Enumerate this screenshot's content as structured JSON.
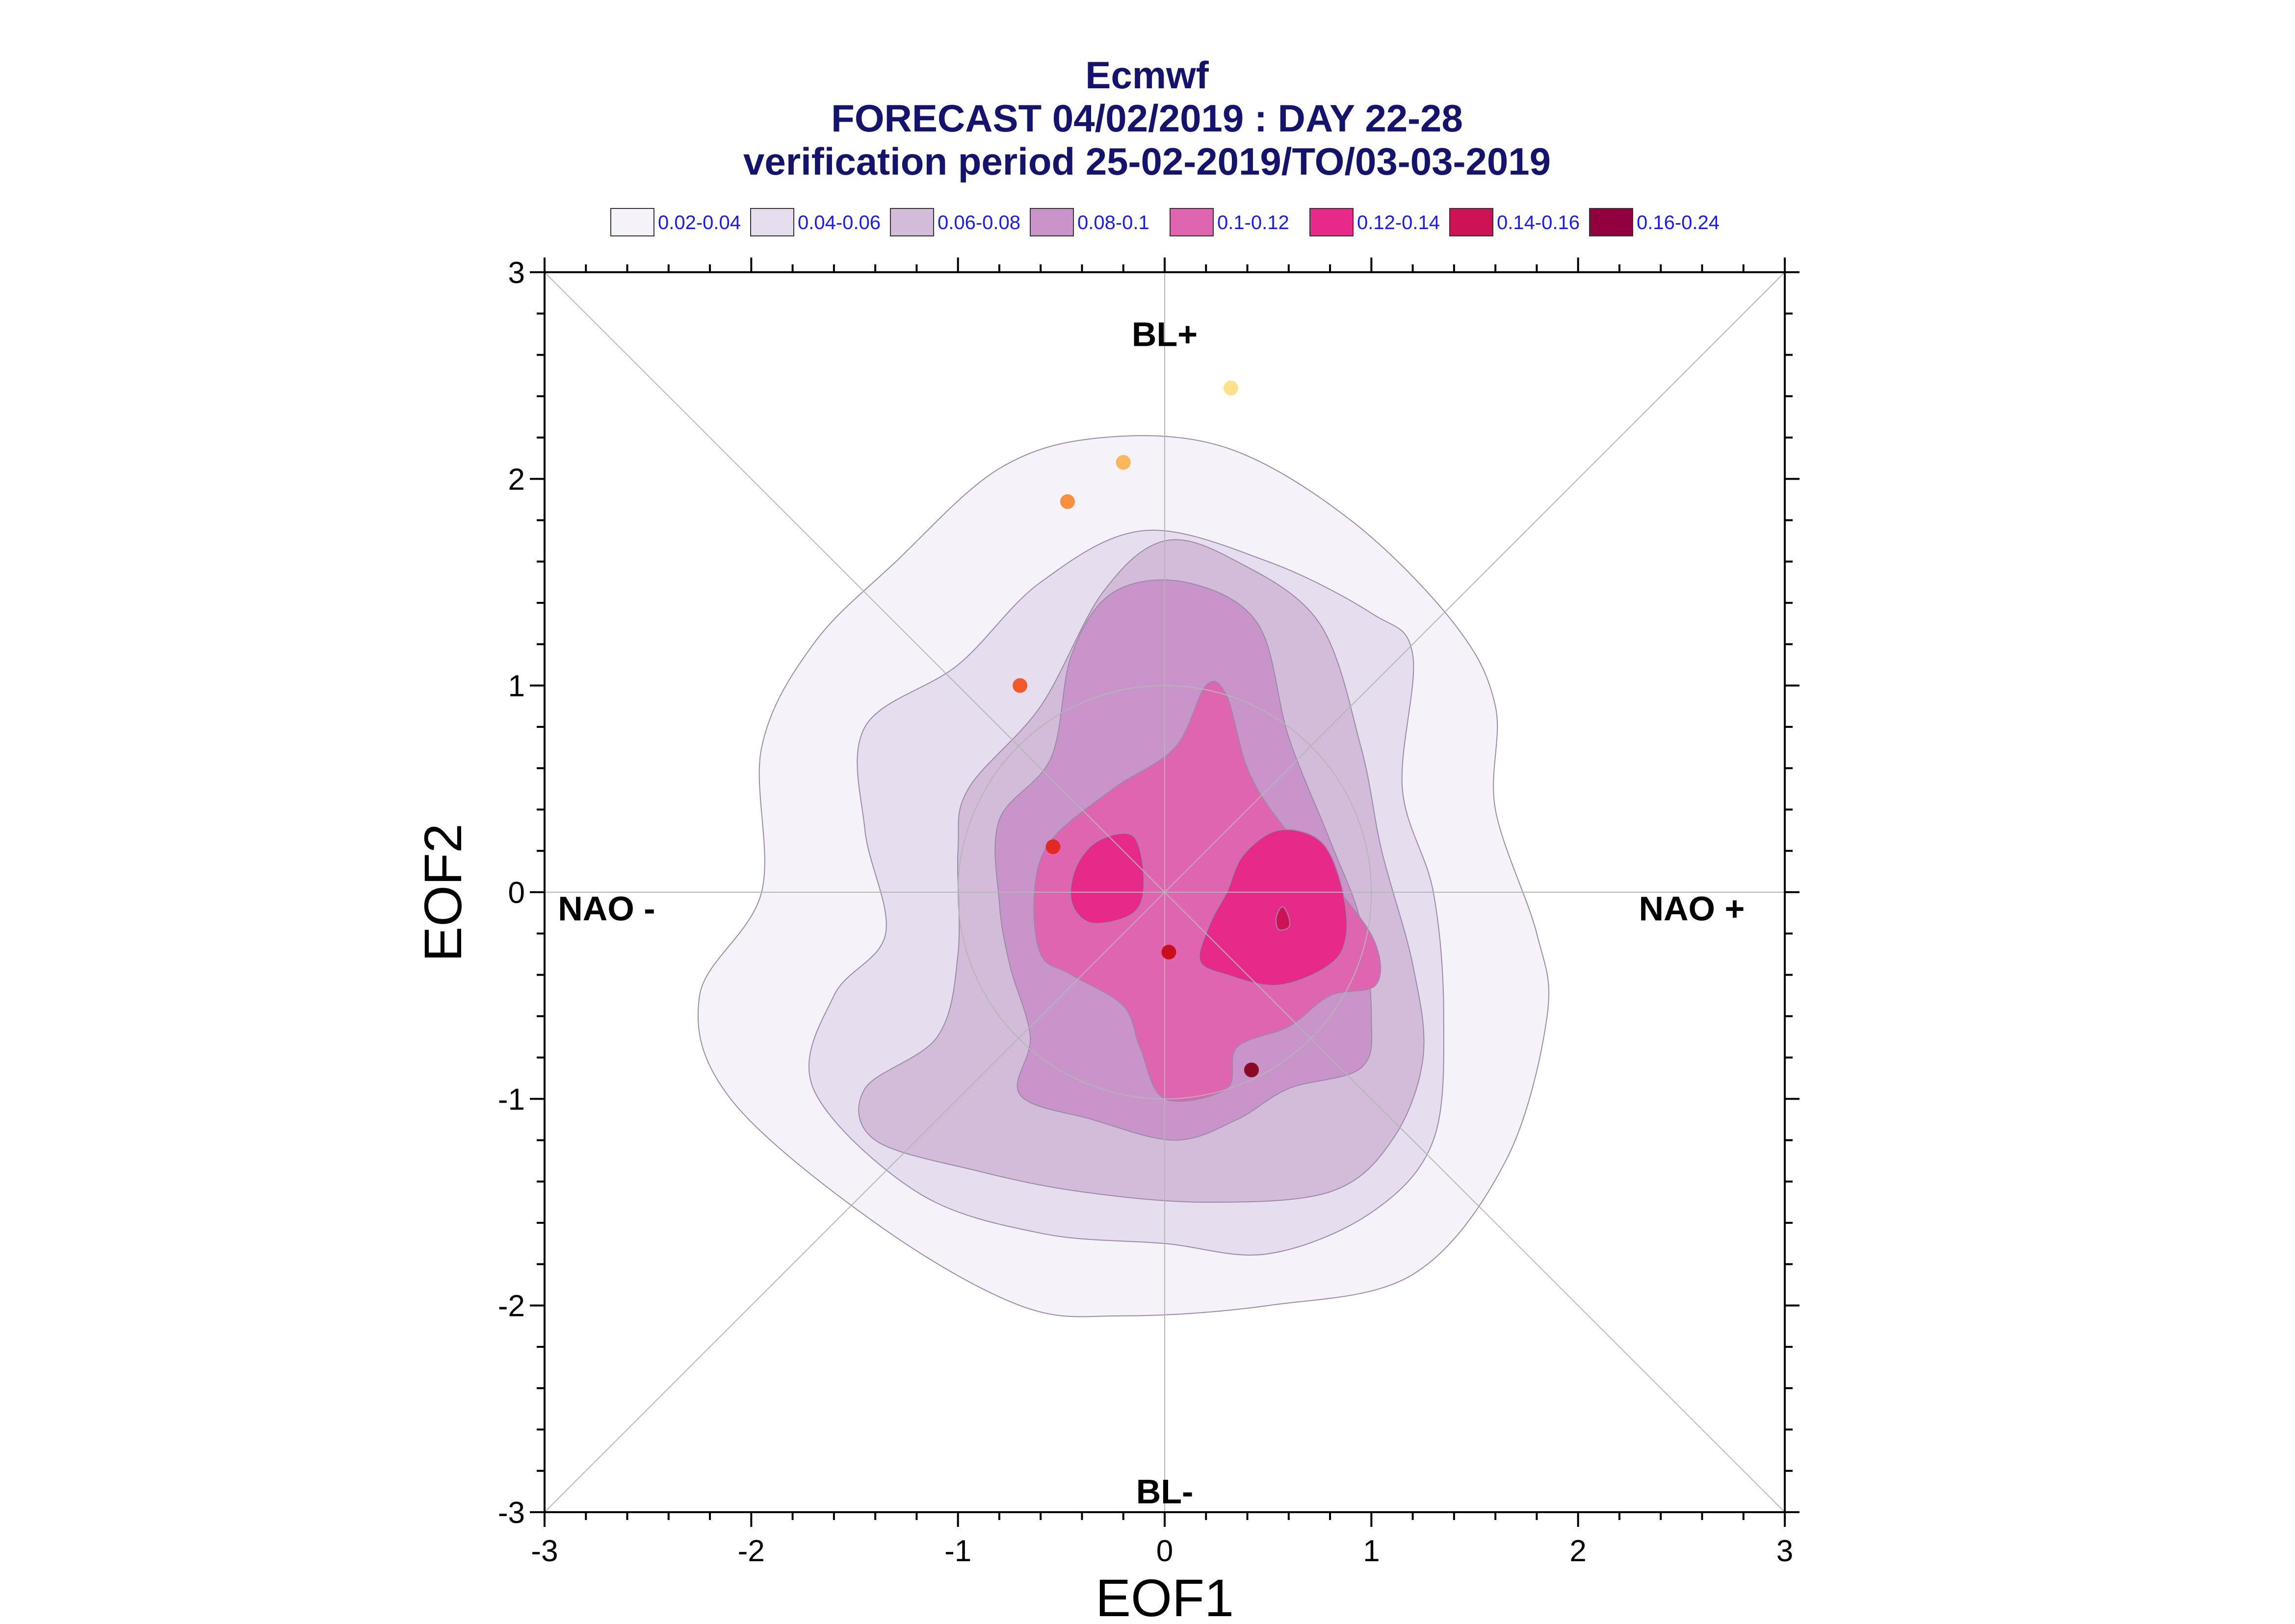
{
  "chart_data": {
    "type": "contour",
    "title": "Ecmwf",
    "subtitle": "FORECAST 04/02/2019 : DAY 22-28",
    "subtitle2": "verification period 25-02-2019/TO/03-03-2019",
    "xlabel": "EOF1",
    "ylabel": "EOF2",
    "xlim": [
      -3,
      3
    ],
    "ylim": [
      -3,
      3
    ],
    "xticks": [
      "-3",
      "-2",
      "-1",
      "0",
      "1",
      "2",
      "3"
    ],
    "yticks": [
      "-3",
      "-2",
      "-1",
      "0",
      "1",
      "2",
      "3"
    ],
    "grid": false,
    "legend_position": "top",
    "legend": [
      {
        "label": "0.02-0.04",
        "color": "#f5f2f9"
      },
      {
        "label": "0.04-0.06",
        "color": "#e6ddee"
      },
      {
        "label": "0.06-0.08",
        "color": "#d3bcda"
      },
      {
        "label": "0.08-0.1",
        "color": "#c994c9"
      },
      {
        "label": "0.1-0.12",
        "color": "#df65b0"
      },
      {
        "label": "0.12-0.14",
        "color": "#e7298a"
      },
      {
        "label": "0.14-0.16",
        "color": "#ce1256"
      },
      {
        "label": "0.16-0.24",
        "color": "#91003f"
      }
    ],
    "regime_labels": [
      {
        "text": "BL+",
        "x": 0,
        "y": 2.7
      },
      {
        "text": "BL-",
        "x": 0,
        "y": -2.9
      },
      {
        "text": "NAO -",
        "x": -2.7,
        "y": -0.08
      },
      {
        "text": "NAO +",
        "x": 2.55,
        "y": -0.08
      }
    ],
    "contours": [
      {
        "level": 0,
        "points": [
          [
            -1.3,
            1.6
          ],
          [
            -0.8,
            2.05
          ],
          [
            -0.3,
            2.2
          ],
          [
            0.3,
            2.15
          ],
          [
            0.9,
            1.8
          ],
          [
            1.4,
            1.3
          ],
          [
            1.6,
            0.9
          ],
          [
            1.6,
            0.4
          ],
          [
            1.8,
            -0.2
          ],
          [
            1.85,
            -0.6
          ],
          [
            1.65,
            -1.3
          ],
          [
            1.2,
            -1.85
          ],
          [
            0.5,
            -2.0
          ],
          [
            -0.2,
            -2.05
          ],
          [
            -0.7,
            -2.0
          ],
          [
            -1.4,
            -1.6
          ],
          [
            -2.1,
            -1.0
          ],
          [
            -2.25,
            -0.5
          ],
          [
            -1.95,
            0.0
          ],
          [
            -1.95,
            0.7
          ],
          [
            -1.7,
            1.2
          ]
        ]
      },
      {
        "level": 1,
        "points": [
          [
            -1.45,
            0.8
          ],
          [
            -1.0,
            1.1
          ],
          [
            -0.6,
            1.5
          ],
          [
            -0.1,
            1.75
          ],
          [
            0.5,
            1.6
          ],
          [
            1.0,
            1.35
          ],
          [
            1.2,
            1.15
          ],
          [
            1.15,
            0.5
          ],
          [
            1.3,
            0.0
          ],
          [
            1.35,
            -0.6
          ],
          [
            1.3,
            -1.2
          ],
          [
            1.0,
            -1.55
          ],
          [
            0.5,
            -1.75
          ],
          [
            0.0,
            -1.7
          ],
          [
            -0.6,
            -1.65
          ],
          [
            -1.2,
            -1.45
          ],
          [
            -1.7,
            -0.95
          ],
          [
            -1.6,
            -0.5
          ],
          [
            -1.35,
            -0.2
          ],
          [
            -1.45,
            0.3
          ]
        ]
      },
      {
        "level": 2,
        "points": [
          [
            -0.95,
            0.5
          ],
          [
            -0.6,
            0.9
          ],
          [
            -0.3,
            1.45
          ],
          [
            0.0,
            1.7
          ],
          [
            0.35,
            1.6
          ],
          [
            0.75,
            1.3
          ],
          [
            0.95,
            0.7
          ],
          [
            1.05,
            0.2
          ],
          [
            1.2,
            -0.35
          ],
          [
            1.25,
            -0.8
          ],
          [
            1.1,
            -1.2
          ],
          [
            0.8,
            -1.45
          ],
          [
            0.2,
            -1.5
          ],
          [
            -0.4,
            -1.45
          ],
          [
            -0.9,
            -1.35
          ],
          [
            -1.4,
            -1.2
          ],
          [
            -1.45,
            -0.95
          ],
          [
            -1.1,
            -0.7
          ],
          [
            -1.0,
            -0.3
          ],
          [
            -1.0,
            0.2
          ]
        ]
      },
      {
        "level": 3,
        "points": [
          [
            -0.8,
            0.35
          ],
          [
            -0.55,
            0.65
          ],
          [
            -0.45,
            1.15
          ],
          [
            -0.25,
            1.45
          ],
          [
            0.1,
            1.5
          ],
          [
            0.45,
            1.3
          ],
          [
            0.6,
            0.75
          ],
          [
            0.8,
            0.25
          ],
          [
            0.95,
            -0.15
          ],
          [
            1.0,
            -0.6
          ],
          [
            0.95,
            -0.85
          ],
          [
            0.6,
            -0.95
          ],
          [
            0.35,
            -1.1
          ],
          [
            0.05,
            -1.2
          ],
          [
            -0.35,
            -1.1
          ],
          [
            -0.7,
            -0.98
          ],
          [
            -0.65,
            -0.7
          ],
          [
            -0.75,
            -0.35
          ],
          [
            -0.8,
            -0.05
          ]
        ]
      },
      {
        "level": 4,
        "points": [
          [
            -0.55,
            0.25
          ],
          [
            -0.25,
            0.5
          ],
          [
            0.05,
            0.7
          ],
          [
            0.2,
            1.0
          ],
          [
            0.3,
            0.95
          ],
          [
            0.4,
            0.6
          ],
          [
            0.55,
            0.35
          ],
          [
            0.85,
            0.0
          ],
          [
            1.02,
            -0.25
          ],
          [
            1.02,
            -0.45
          ],
          [
            0.8,
            -0.5
          ],
          [
            0.6,
            -0.65
          ],
          [
            0.35,
            -0.75
          ],
          [
            0.3,
            -0.95
          ],
          [
            0.0,
            -1.0
          ],
          [
            -0.12,
            -0.75
          ],
          [
            -0.2,
            -0.55
          ],
          [
            -0.45,
            -0.4
          ],
          [
            -0.6,
            -0.3
          ],
          [
            -0.63,
            0.0
          ]
        ]
      },
      {
        "level": 5,
        "points": [
          [
            -0.32,
            0.25
          ],
          [
            -0.15,
            0.27
          ],
          [
            -0.1,
            0.05
          ],
          [
            -0.15,
            -0.1
          ],
          [
            -0.35,
            -0.15
          ],
          [
            -0.45,
            -0.05
          ],
          [
            -0.43,
            0.12
          ]
        ]
      },
      {
        "level": 5,
        "points": [
          [
            0.38,
            0.18
          ],
          [
            0.55,
            0.3
          ],
          [
            0.75,
            0.25
          ],
          [
            0.85,
            0.05
          ],
          [
            0.88,
            -0.2
          ],
          [
            0.8,
            -0.35
          ],
          [
            0.55,
            -0.45
          ],
          [
            0.3,
            -0.4
          ],
          [
            0.17,
            -0.33
          ],
          [
            0.22,
            -0.15
          ],
          [
            0.3,
            0.0
          ]
        ]
      },
      {
        "level": 6,
        "points": [
          [
            0.57,
            -0.07
          ],
          [
            0.6,
            -0.12
          ],
          [
            0.6,
            -0.17
          ],
          [
            0.55,
            -0.18
          ],
          [
            0.54,
            -0.12
          ]
        ]
      }
    ],
    "points": [
      {
        "x": 0.32,
        "y": 2.44,
        "color": "#fde28a"
      },
      {
        "x": -0.2,
        "y": 2.08,
        "color": "#fdb75b"
      },
      {
        "x": -0.47,
        "y": 1.89,
        "color": "#f8903d"
      },
      {
        "x": -0.7,
        "y": 1.0,
        "color": "#f25a2c"
      },
      {
        "x": -0.54,
        "y": 0.22,
        "color": "#e32a22"
      },
      {
        "x": 0.02,
        "y": -0.29,
        "color": "#c7101b"
      },
      {
        "x": 0.42,
        "y": -0.86,
        "color": "#8a0a26"
      }
    ]
  }
}
